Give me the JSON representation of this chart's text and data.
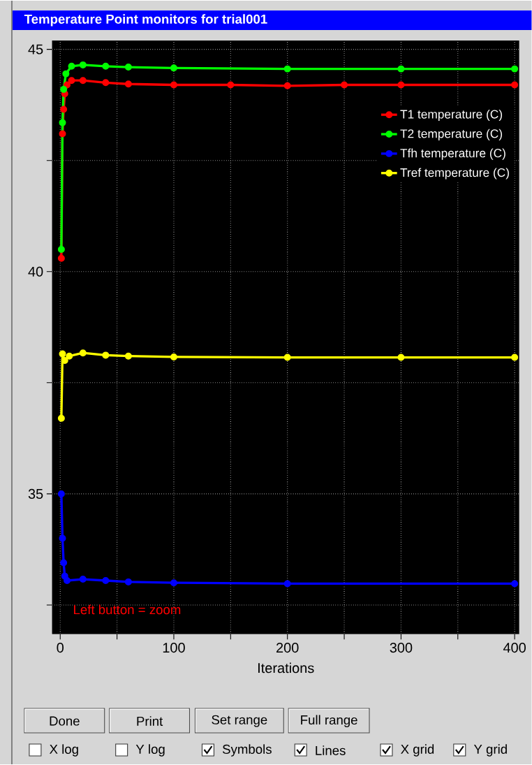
{
  "chart_data": {
    "type": "line",
    "title": "Temperature Point monitors for trial001",
    "xlabel": "Iterations",
    "xlim": [
      -7,
      404
    ],
    "ylim": [
      31.85,
      45.2
    ],
    "xticks": [
      0,
      {
        "value": 50,
        "label": null
      },
      100,
      {
        "value": 150,
        "label": null
      },
      200,
      {
        "value": 250,
        "label": null
      },
      300,
      {
        "value": 350,
        "label": null
      },
      400
    ],
    "yticks": [
      {
        "value": 32.5,
        "label": null
      },
      35,
      {
        "value": 37.5,
        "label": null
      },
      40,
      {
        "value": 42.5,
        "label": null
      },
      45
    ],
    "grid": true,
    "legend": "top right",
    "marker": "circle",
    "line_style": "solid",
    "series": [
      {
        "name": "T1 temperature (C)",
        "color": "#ff0000",
        "x": [
          1,
          2,
          3,
          4,
          6,
          10,
          20,
          40,
          60,
          100,
          150,
          200,
          250,
          300,
          400
        ],
        "values": [
          40.3,
          43.1,
          43.65,
          44.0,
          44.2,
          44.3,
          44.3,
          44.25,
          44.22,
          44.2,
          44.2,
          44.18,
          44.2,
          44.2,
          44.2
        ]
      },
      {
        "name": "T2 temperature (C)",
        "color": "#00ff00",
        "x": [
          1,
          2,
          3,
          5,
          10,
          20,
          40,
          60,
          100,
          200,
          300,
          400
        ],
        "values": [
          40.5,
          43.35,
          44.1,
          44.45,
          44.62,
          44.65,
          44.62,
          44.6,
          44.58,
          44.56,
          44.56,
          44.56
        ]
      },
      {
        "name": "Tfh temperature (C)",
        "color": "#0000ff",
        "x": [
          1,
          2,
          3,
          4,
          6,
          20,
          40,
          60,
          100,
          200,
          400
        ],
        "values": [
          35.0,
          34.0,
          33.45,
          33.15,
          33.05,
          33.08,
          33.05,
          33.02,
          33.0,
          32.98,
          32.98
        ]
      },
      {
        "name": "Tref temperature (C)",
        "color": "#ffff00",
        "x": [
          1,
          2,
          4,
          8,
          20,
          40,
          60,
          100,
          200,
          300,
          400
        ],
        "values": [
          36.7,
          38.15,
          38.0,
          38.1,
          38.17,
          38.12,
          38.1,
          38.08,
          38.07,
          38.07,
          38.07
        ]
      }
    ],
    "annotations": [
      "Left button = zoom",
      "Done",
      "Print",
      "Set range",
      "Full range",
      "X log",
      "Y log",
      "Symbols",
      "Lines",
      "X grid",
      "Y grid"
    ]
  }
}
